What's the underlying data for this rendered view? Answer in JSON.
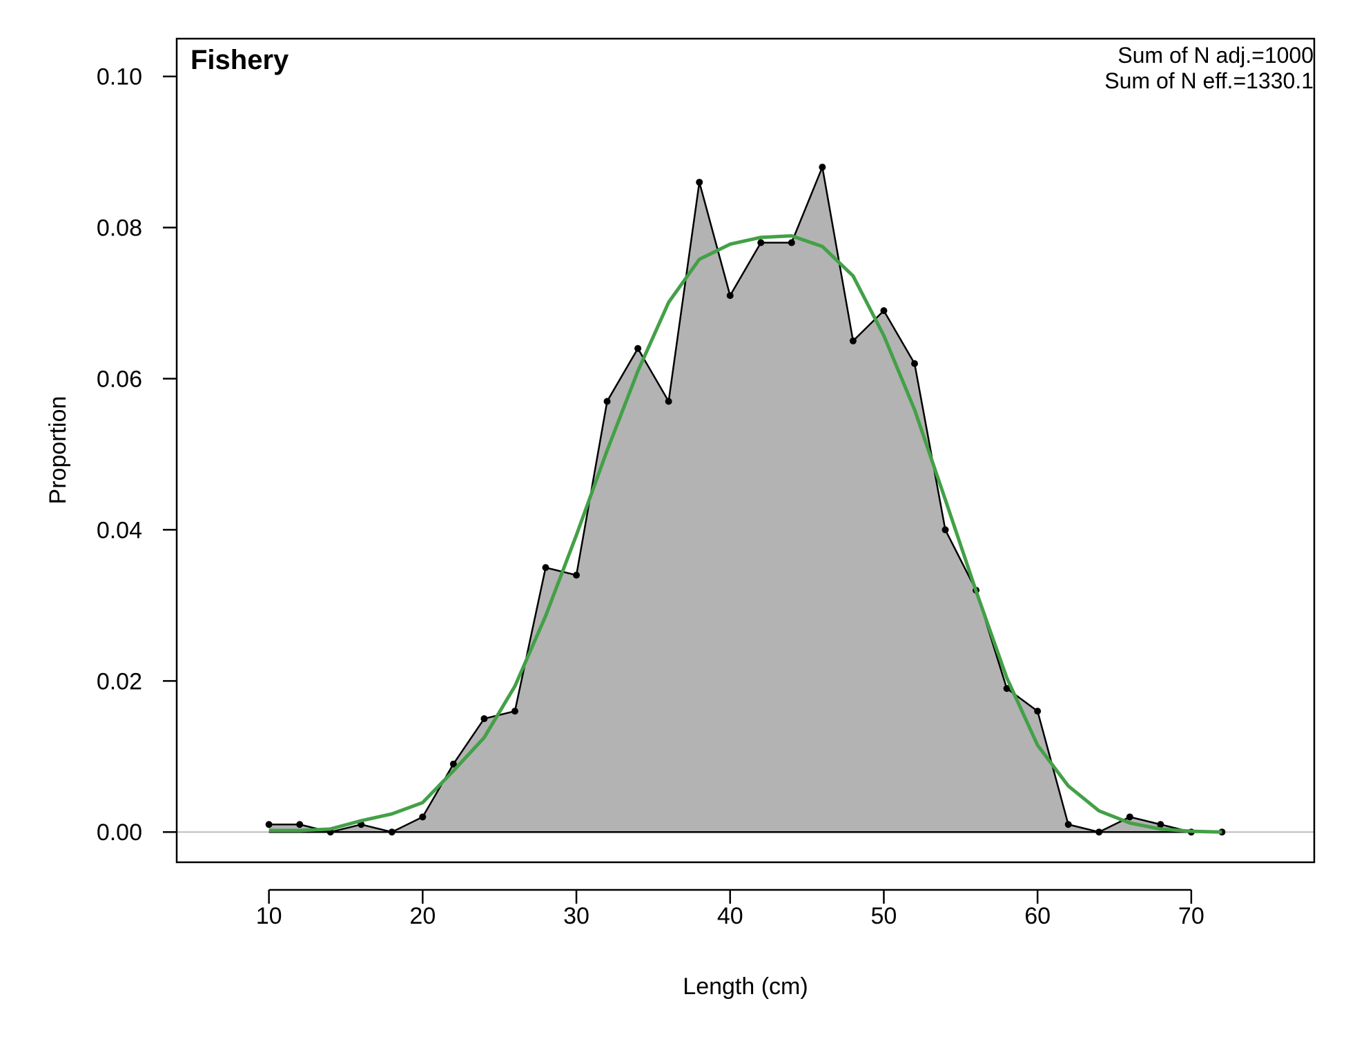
{
  "chart_data": {
    "type": "area",
    "title": "Fishery",
    "annotations": [
      "Sum of N adj.=1000",
      "Sum of N eff.=1330.1"
    ],
    "xlabel": "Length (cm)",
    "ylabel": "Proportion",
    "xlim": [
      4,
      78
    ],
    "ylim": [
      -0.004,
      0.105
    ],
    "xticks": [
      10,
      20,
      30,
      40,
      50,
      60,
      70
    ],
    "yticks": [
      0,
      0.02,
      0.04,
      0.06,
      0.08,
      0.1
    ],
    "xtick_labels": [
      "10",
      "20",
      "30",
      "40",
      "50",
      "60",
      "70"
    ],
    "ytick_labels": [
      "0.00",
      "0.02",
      "0.04",
      "0.06",
      "0.08",
      "0.10"
    ],
    "grid": false,
    "reference_line": 0,
    "series": [
      {
        "role": "observed",
        "style": "filled area with line and points",
        "color": "#000000",
        "fill": "#b3b3b3",
        "x": [
          10,
          12,
          14,
          16,
          18,
          20,
          22,
          24,
          26,
          28,
          30,
          32,
          34,
          36,
          38,
          40,
          42,
          44,
          46,
          48,
          50,
          52,
          54,
          56,
          58,
          60,
          62,
          64,
          66,
          68,
          70,
          72
        ],
        "y": [
          0.001,
          0.001,
          0.0,
          0.001,
          0.0,
          0.002,
          0.009,
          0.015,
          0.016,
          0.035,
          0.034,
          0.057,
          0.064,
          0.057,
          0.086,
          0.071,
          0.078,
          0.078,
          0.088,
          0.065,
          0.069,
          0.062,
          0.04,
          0.032,
          0.019,
          0.016,
          0.001,
          0.0,
          0.002,
          0.001,
          0.0,
          0.0
        ]
      },
      {
        "role": "expected",
        "style": "line",
        "color": "#43a047",
        "x": [
          10,
          12,
          14,
          16,
          18,
          20,
          22,
          24,
          26,
          28,
          30,
          32,
          34,
          36,
          38,
          40,
          42,
          44,
          46,
          48,
          50,
          52,
          54,
          56,
          58,
          60,
          62,
          64,
          66,
          68,
          70,
          72
        ],
        "y": [
          0.0002,
          0.0002,
          0.0004,
          0.0015,
          0.0024,
          0.0039,
          0.0081,
          0.0125,
          0.0193,
          0.0286,
          0.0393,
          0.0505,
          0.061,
          0.0701,
          0.0758,
          0.0778,
          0.0787,
          0.0789,
          0.0775,
          0.0736,
          0.0657,
          0.0559,
          0.044,
          0.0319,
          0.0204,
          0.0115,
          0.0061,
          0.0028,
          0.0012,
          0.0004,
          0.0001,
          0.0
        ]
      }
    ]
  }
}
